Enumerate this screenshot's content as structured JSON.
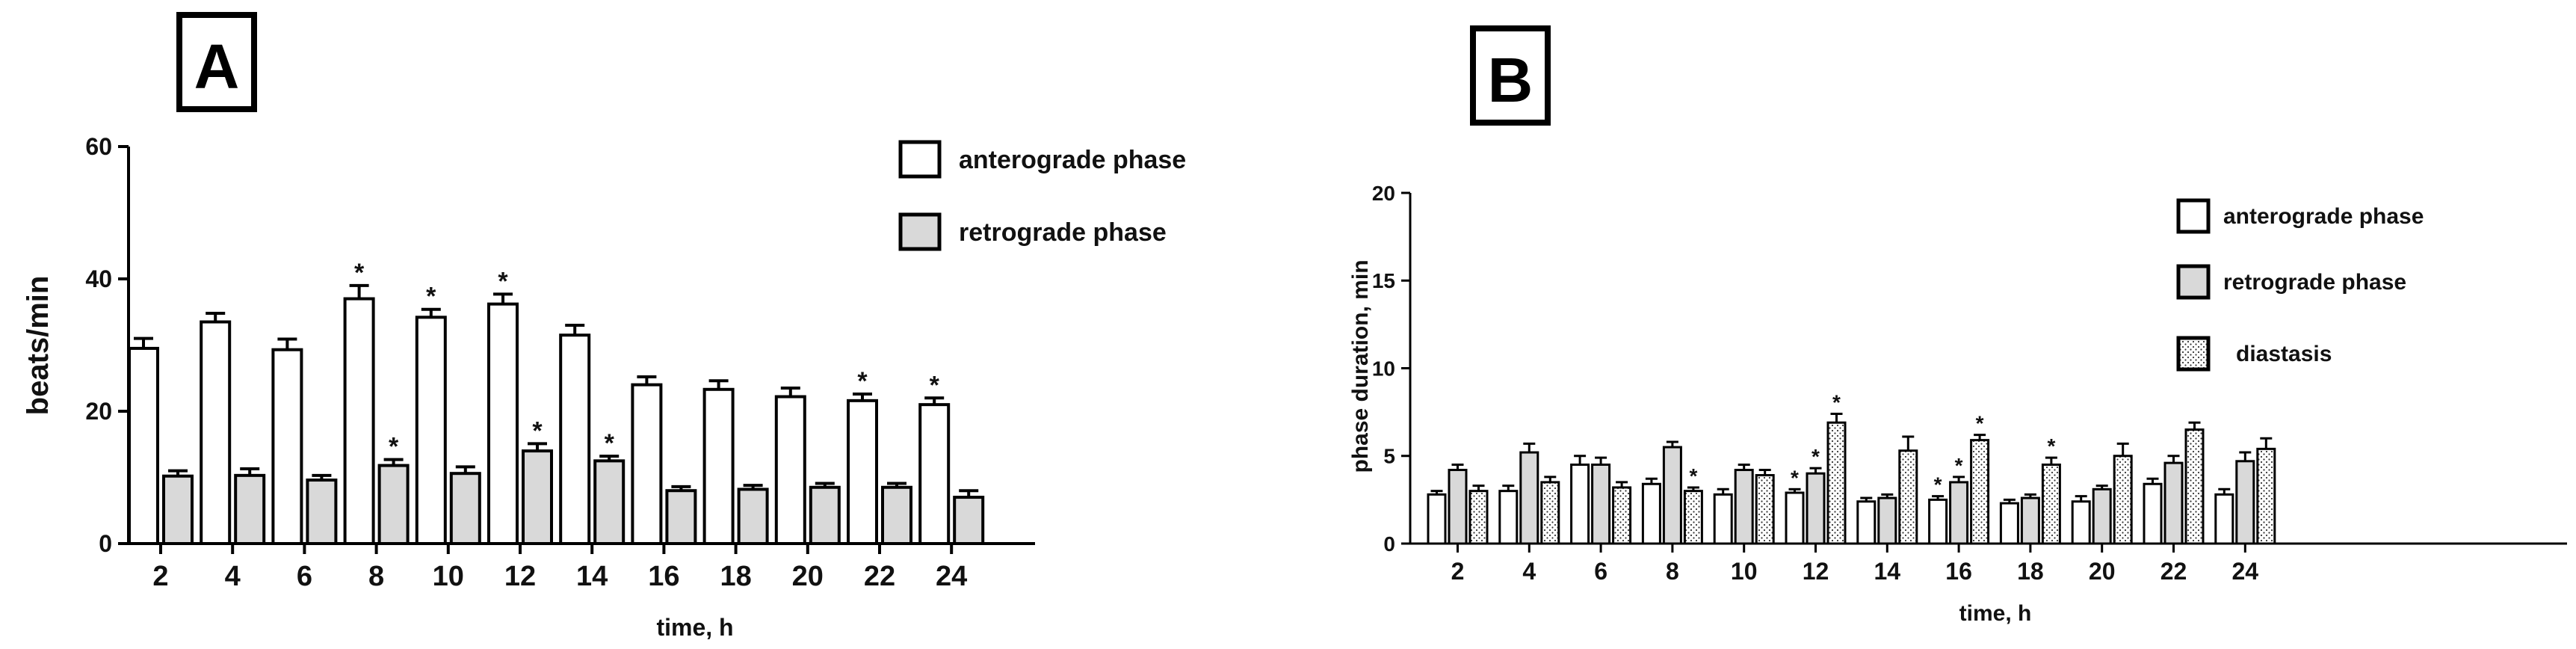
{
  "chart_data": [
    {
      "type": "bar",
      "panel_label": "A",
      "xlabel": "time, h",
      "ylabel": "beats/min",
      "ylim": [
        0,
        60
      ],
      "yticks": [
        0,
        20,
        40,
        60
      ],
      "categories": [
        "2",
        "4",
        "6",
        "8",
        "10",
        "12",
        "14",
        "16",
        "18",
        "20",
        "22",
        "24"
      ],
      "grid": false,
      "legend_position": "top-right",
      "series": [
        {
          "name": "anterograde phase",
          "fill": "#ffffff",
          "values": [
            29.5,
            33.5,
            29.3,
            37.0,
            34.2,
            36.2,
            31.5,
            24.0,
            23.3,
            22.2,
            21.6,
            21.0
          ],
          "errors": [
            1.5,
            1.3,
            1.6,
            2.0,
            1.2,
            1.5,
            1.5,
            1.2,
            1.3,
            1.3,
            1.0,
            1.0
          ],
          "significant": [
            false,
            false,
            false,
            true,
            true,
            true,
            false,
            false,
            false,
            false,
            true,
            true
          ]
        },
        {
          "name": "retrograde phase",
          "fill": "#d9d9d9",
          "values": [
            10.2,
            10.3,
            9.6,
            11.8,
            10.6,
            14.0,
            12.5,
            8.0,
            8.2,
            8.5,
            8.5,
            7.0
          ],
          "errors": [
            0.8,
            1.0,
            0.7,
            0.9,
            1.0,
            1.1,
            0.7,
            0.6,
            0.6,
            0.6,
            0.6,
            1.0
          ],
          "significant": [
            false,
            false,
            false,
            true,
            false,
            true,
            true,
            false,
            false,
            false,
            false,
            false
          ]
        }
      ],
      "marker": "*"
    },
    {
      "type": "bar",
      "panel_label": "B",
      "xlabel": "time, h",
      "ylabel": "phase duration, min",
      "ylim": [
        0,
        20
      ],
      "yticks": [
        0,
        5,
        10,
        15,
        20
      ],
      "categories": [
        "2",
        "4",
        "6",
        "8",
        "10",
        "12",
        "14",
        "16",
        "18",
        "20",
        "22",
        "24"
      ],
      "grid": false,
      "legend_position": "top-right",
      "series": [
        {
          "name": "anterograde phase",
          "fill": "#ffffff",
          "pattern": "none",
          "values": [
            2.8,
            3.0,
            4.5,
            3.4,
            2.8,
            2.9,
            2.4,
            2.5,
            2.3,
            2.4,
            3.4,
            2.8
          ],
          "errors": [
            0.2,
            0.3,
            0.5,
            0.3,
            0.3,
            0.2,
            0.2,
            0.2,
            0.2,
            0.3,
            0.3,
            0.3
          ],
          "significant": [
            false,
            false,
            false,
            false,
            false,
            true,
            false,
            true,
            false,
            false,
            false,
            false
          ]
        },
        {
          "name": "retrograde phase",
          "fill": "#d9d9d9",
          "pattern": "none",
          "values": [
            4.2,
            5.2,
            4.5,
            5.5,
            4.2,
            4.0,
            2.6,
            3.5,
            2.6,
            3.1,
            4.6,
            4.7
          ],
          "errors": [
            0.3,
            0.5,
            0.4,
            0.3,
            0.3,
            0.3,
            0.2,
            0.3,
            0.2,
            0.2,
            0.4,
            0.5
          ],
          "significant": [
            false,
            false,
            false,
            false,
            false,
            true,
            false,
            true,
            false,
            false,
            false,
            false
          ]
        },
        {
          "name": "diastasis",
          "fill": "#ffffff",
          "pattern": "dots",
          "values": [
            3.0,
            3.5,
            3.2,
            3.0,
            3.9,
            6.9,
            5.3,
            5.9,
            4.5,
            5.0,
            6.5,
            5.4
          ],
          "errors": [
            0.3,
            0.3,
            0.3,
            0.2,
            0.3,
            0.5,
            0.8,
            0.3,
            0.4,
            0.7,
            0.4,
            0.6
          ],
          "significant": [
            false,
            false,
            false,
            true,
            false,
            true,
            false,
            true,
            true,
            false,
            false,
            false
          ]
        }
      ],
      "marker": "*"
    }
  ]
}
